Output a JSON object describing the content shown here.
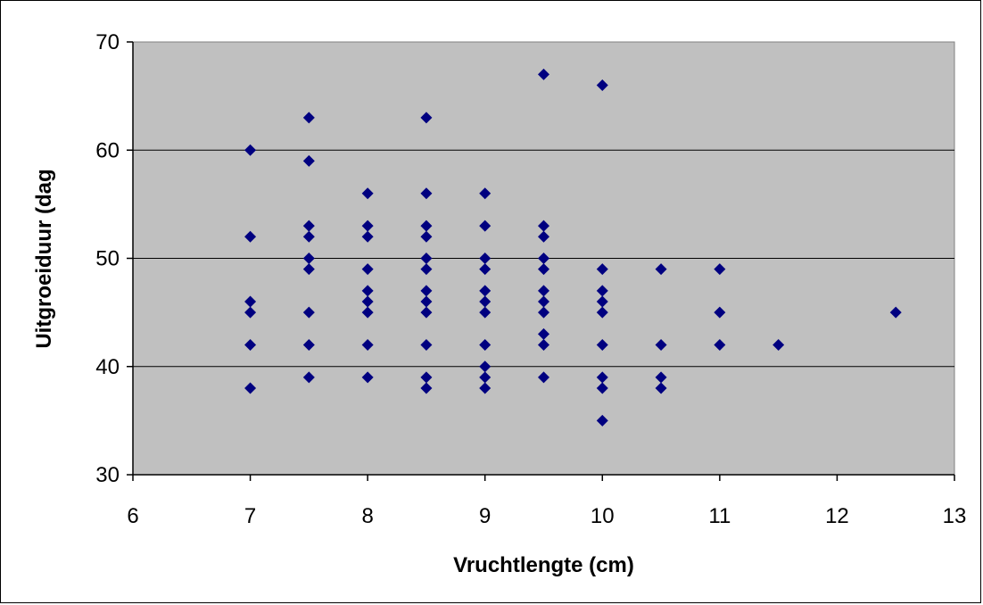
{
  "chart_data": {
    "type": "scatter",
    "title": "",
    "xlabel": "Vruchtlengte (cm)",
    "ylabel": "Uitgroeiduur (dag",
    "xlim": [
      6,
      13
    ],
    "ylim": [
      30,
      70
    ],
    "xticks": [
      "6",
      "7",
      "8",
      "9",
      "10",
      "11",
      "12",
      "13"
    ],
    "yticks": [
      "30",
      "40",
      "50",
      "60",
      "70"
    ],
    "grid": "horizontal",
    "legend": "none",
    "marker": "diamond",
    "colors": {
      "marker": "#000080",
      "plot_bg": "#c0c0c0",
      "gridline": "#000000"
    },
    "points": [
      [
        7,
        60
      ],
      [
        7,
        52
      ],
      [
        7,
        46
      ],
      [
        7,
        45
      ],
      [
        7,
        42
      ],
      [
        7,
        38
      ],
      [
        7.5,
        63
      ],
      [
        7.5,
        59
      ],
      [
        7.5,
        53
      ],
      [
        7.5,
        52
      ],
      [
        7.5,
        50
      ],
      [
        7.5,
        49
      ],
      [
        7.5,
        45
      ],
      [
        7.5,
        42
      ],
      [
        7.5,
        39
      ],
      [
        8,
        56
      ],
      [
        8,
        53
      ],
      [
        8,
        52
      ],
      [
        8,
        49
      ],
      [
        8,
        47
      ],
      [
        8,
        46
      ],
      [
        8,
        45
      ],
      [
        8,
        42
      ],
      [
        8,
        39
      ],
      [
        8.5,
        63
      ],
      [
        8.5,
        56
      ],
      [
        8.5,
        53
      ],
      [
        8.5,
        52
      ],
      [
        8.5,
        50
      ],
      [
        8.5,
        49
      ],
      [
        8.5,
        47
      ],
      [
        8.5,
        46
      ],
      [
        8.5,
        45
      ],
      [
        8.5,
        42
      ],
      [
        8.5,
        39
      ],
      [
        8.5,
        38
      ],
      [
        9,
        56
      ],
      [
        9,
        53
      ],
      [
        9,
        50
      ],
      [
        9,
        49
      ],
      [
        9,
        47
      ],
      [
        9,
        46
      ],
      [
        9,
        45
      ],
      [
        9,
        42
      ],
      [
        9,
        40
      ],
      [
        9,
        39
      ],
      [
        9,
        38
      ],
      [
        9.5,
        67
      ],
      [
        9.5,
        53
      ],
      [
        9.5,
        52
      ],
      [
        9.5,
        50
      ],
      [
        9.5,
        49
      ],
      [
        9.5,
        47
      ],
      [
        9.5,
        46
      ],
      [
        9.5,
        45
      ],
      [
        9.5,
        43
      ],
      [
        9.5,
        42
      ],
      [
        9.5,
        39
      ],
      [
        10,
        66
      ],
      [
        10,
        49
      ],
      [
        10,
        47
      ],
      [
        10,
        46
      ],
      [
        10,
        45
      ],
      [
        10,
        42
      ],
      [
        10,
        39
      ],
      [
        10,
        38
      ],
      [
        10,
        35
      ],
      [
        10.5,
        49
      ],
      [
        10.5,
        42
      ],
      [
        10.5,
        39
      ],
      [
        10.5,
        38
      ],
      [
        11,
        49
      ],
      [
        11,
        45
      ],
      [
        11,
        42
      ],
      [
        11.5,
        42
      ],
      [
        12.5,
        45
      ]
    ]
  }
}
